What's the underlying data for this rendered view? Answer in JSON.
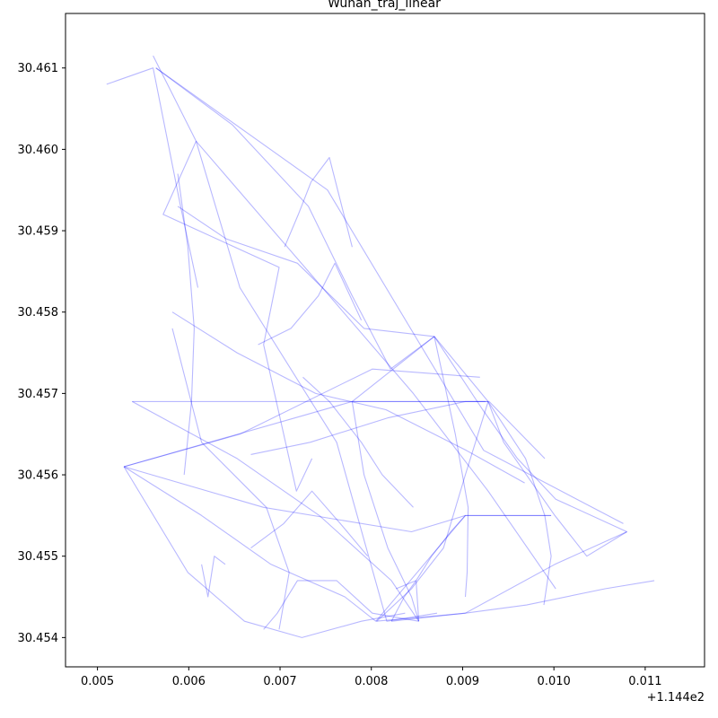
{
  "chart_data": {
    "type": "line",
    "title": "Wuhan_traj_linear",
    "xlabel": "",
    "ylabel": "",
    "x_offset_label": "+1.144e2",
    "xlim": [
      0.00465,
      0.01165
    ],
    "ylim": [
      30.45364,
      30.46167
    ],
    "x_ticks": [
      0.005,
      0.006,
      0.007,
      0.008,
      0.009,
      0.01,
      0.011
    ],
    "x_tick_labels": [
      "0.005",
      "0.006",
      "0.007",
      "0.008",
      "0.009",
      "0.010",
      "0.011"
    ],
    "y_ticks": [
      30.454,
      30.455,
      30.456,
      30.457,
      30.458,
      30.459,
      30.46,
      30.461
    ],
    "y_tick_labels": [
      "30.454",
      "30.455",
      "30.456",
      "30.457",
      "30.458",
      "30.459",
      "30.460",
      "30.461"
    ],
    "grid": false,
    "line_color": "#0000ff",
    "series": [
      {
        "x": [
          0.00561,
          0.00608,
          0.00572,
          0.00699,
          0.00682,
          0.00718,
          0.00735
        ],
        "y": [
          30.46115,
          30.4601,
          30.4592,
          30.45855,
          30.4576,
          30.4558,
          30.4562
        ]
      },
      {
        "x": [
          0.00564,
          0.00648,
          0.00731,
          0.00779,
          0.00821,
          0.00869
        ],
        "y": [
          30.461,
          30.4603,
          30.4593,
          30.4582,
          30.4573,
          30.4577
        ]
      },
      {
        "x": [
          0.00564,
          0.00752,
          0.00923,
          0.01076
        ],
        "y": [
          30.461,
          30.4595,
          30.4563,
          30.4554
        ]
      },
      {
        "x": [
          0.0051,
          0.00561,
          0.00591,
          0.0061
        ],
        "y": [
          30.4608,
          30.461,
          30.4593,
          30.4583
        ]
      },
      {
        "x": [
          0.00608,
          0.00731,
          0.00846,
          0.00928,
          0.01002
        ],
        "y": [
          30.4601,
          30.4585,
          30.457,
          30.4558,
          30.4546
        ]
      },
      {
        "x": [
          0.00608,
          0.00656,
          0.00762,
          0.00817,
          0.00872
        ],
        "y": [
          30.4601,
          30.4583,
          30.4564,
          30.4542,
          30.4543
        ]
      },
      {
        "x": [
          0.00588,
          0.00599,
          0.00606,
          0.00603,
          0.00595
        ],
        "y": [
          30.4597,
          30.4588,
          30.4578,
          30.4569,
          30.456
        ]
      },
      {
        "x": [
          0.00588,
          0.00641,
          0.00719,
          0.00792,
          0.00869
        ],
        "y": [
          30.4593,
          30.4589,
          30.4586,
          30.4578,
          30.4577
        ]
      },
      {
        "x": [
          0.00582,
          0.00653,
          0.00739,
          0.00816,
          0.00904,
          0.00968
        ],
        "y": [
          30.458,
          30.4575,
          30.457,
          30.4568,
          30.4563,
          30.4559
        ]
      },
      {
        "x": [
          0.00582,
          0.00614,
          0.00685,
          0.0071,
          0.00699
        ],
        "y": [
          30.4578,
          30.4564,
          30.4556,
          30.4548,
          30.4541
        ]
      },
      {
        "x": [
          0.00538,
          0.00779,
          0.00928
        ],
        "y": [
          30.4569,
          30.4569,
          30.4569
        ]
      },
      {
        "x": [
          0.00538,
          0.00653,
          0.00743,
          0.00822,
          0.00852
        ],
        "y": [
          30.4569,
          30.4562,
          30.4555,
          30.4547,
          30.4542
        ]
      },
      {
        "x": [
          0.00529,
          0.00779,
          0.00925
        ],
        "y": [
          30.4561,
          30.4569,
          30.4569
        ]
      },
      {
        "x": [
          0.00529,
          0.00682,
          0.00844,
          0.00903,
          0.00997
        ],
        "y": [
          30.4561,
          30.4556,
          30.4553,
          30.4555,
          30.4555
        ]
      },
      {
        "x": [
          0.00529,
          0.00614,
          0.0069,
          0.00771,
          0.00805
        ],
        "y": [
          30.4561,
          30.4555,
          30.4549,
          30.4545,
          30.4542
        ]
      },
      {
        "x": [
          0.00529,
          0.00599,
          0.00661,
          0.00724,
          0.00789,
          0.00837
        ],
        "y": [
          30.4561,
          30.4548,
          30.4542,
          30.454,
          30.4542,
          30.4543
        ]
      },
      {
        "x": [
          0.00529,
          0.00656,
          0.00801,
          0.00919
        ],
        "y": [
          30.4561,
          30.4565,
          30.4573,
          30.4572
        ]
      },
      {
        "x": [
          0.00668,
          0.00733,
          0.00818,
          0.00903,
          0.00929,
          0.0099
        ],
        "y": [
          30.45625,
          30.4564,
          30.4567,
          30.4569,
          30.4569,
          30.4562
        ]
      },
      {
        "x": [
          0.00779,
          0.00792,
          0.00818,
          0.00844,
          0.00852
        ],
        "y": [
          30.4569,
          30.456,
          30.4551,
          30.4545,
          30.4542
        ]
      },
      {
        "x": [
          0.00779,
          0.00869,
          0.00928
        ],
        "y": [
          30.4569,
          30.4577,
          30.4569
        ]
      },
      {
        "x": [
          0.00869,
          0.00922,
          0.0096,
          0.01002,
          0.0108
        ],
        "y": [
          30.4577,
          30.4568,
          30.4562,
          30.4557,
          30.4553
        ]
      },
      {
        "x": [
          0.00869,
          0.00892,
          0.00906,
          0.00905,
          0.00903
        ],
        "y": [
          30.4577,
          30.4565,
          30.4556,
          30.4548,
          30.4545
        ]
      },
      {
        "x": [
          0.00928,
          0.00945,
          0.01001,
          0.01036,
          0.0108
        ],
        "y": [
          30.4569,
          30.4564,
          30.4555,
          30.455,
          30.4553
        ]
      },
      {
        "x": [
          0.00928,
          0.00903,
          0.00879,
          0.00844,
          0.00806
        ],
        "y": [
          30.4569,
          30.456,
          30.4551,
          30.4546,
          30.4542
        ]
      },
      {
        "x": [
          0.00928,
          0.00969,
          0.0099,
          0.00997,
          0.00989
        ],
        "y": [
          30.4569,
          30.4562,
          30.4555,
          30.455,
          30.4544
        ]
      },
      {
        "x": [
          0.00805,
          0.00903,
          0.01001,
          0.0108
        ],
        "y": [
          30.4542,
          30.4543,
          30.4549,
          30.4553
        ]
      },
      {
        "x": [
          0.00805,
          0.00903,
          0.00997
        ],
        "y": [
          30.4542,
          30.4555,
          30.4555
        ]
      },
      {
        "x": [
          0.00822,
          0.00903,
          0.0097,
          0.01056,
          0.0111
        ],
        "y": [
          30.4542,
          30.4543,
          30.4544,
          30.4546,
          30.4547
        ]
      },
      {
        "x": [
          0.00822,
          0.00836,
          0.00849,
          0.00852
        ],
        "y": [
          30.4542,
          30.4545,
          30.4547,
          30.4542
        ]
      },
      {
        "x": [
          0.00827,
          0.00849,
          0.00866,
          0.00887,
          0.00903
        ],
        "y": [
          30.4546,
          30.4547,
          30.455,
          30.4553,
          30.4555
        ]
      },
      {
        "x": [
          0.00682,
          0.00697,
          0.00719,
          0.00762,
          0.00801,
          0.00852
        ],
        "y": [
          30.4541,
          30.4543,
          30.4547,
          30.4547,
          30.4543,
          30.4542
        ]
      },
      {
        "x": [
          0.0064,
          0.00628,
          0.00621,
          0.00614
        ],
        "y": [
          30.4549,
          30.455,
          30.4545,
          30.4549
        ]
      },
      {
        "x": [
          0.00705,
          0.0072,
          0.00734,
          0.00754,
          0.00779
        ],
        "y": [
          30.4588,
          30.4592,
          30.4596,
          30.4599,
          30.4588
        ]
      },
      {
        "x": [
          0.00676,
          0.00712,
          0.00742,
          0.0076,
          0.00789
        ],
        "y": [
          30.4576,
          30.4578,
          30.4582,
          30.4586,
          30.4579
        ]
      },
      {
        "x": [
          0.00725,
          0.00754,
          0.00789,
          0.00812,
          0.00846
        ],
        "y": [
          30.4572,
          30.4569,
          30.4564,
          30.456,
          30.4556
        ]
      },
      {
        "x": [
          0.00668,
          0.00704,
          0.00735,
          0.00766,
          0.00796
        ],
        "y": [
          30.4551,
          30.4554,
          30.4558,
          30.4554,
          30.455
        ]
      }
    ]
  }
}
